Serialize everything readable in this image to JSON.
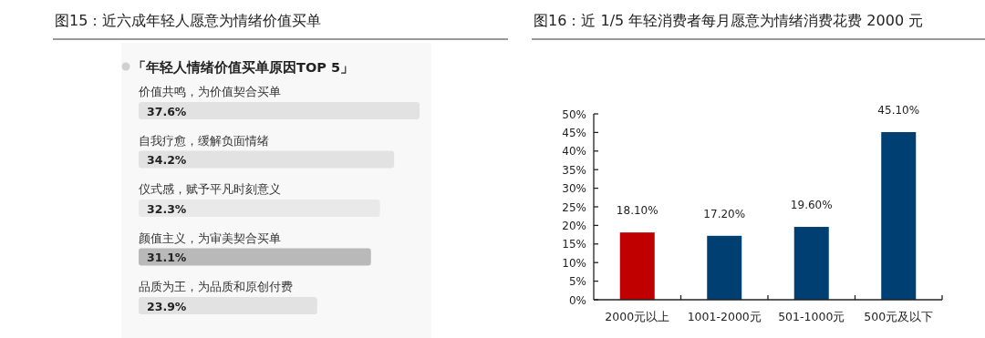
{
  "chart_data": [
    {
      "type": "bar",
      "orientation": "horizontal",
      "title": "图15：近六成年轻人愿意为情绪价值买单",
      "subtitle": "「年轻人情绪价值买单原因TOP 5」",
      "categories": [
        "价值共鸣，为价值契合买单",
        "自我疗愈，缓解负面情绪",
        "仪式感，赋予平凡时刻意义",
        "颜值主义，为审美契合买单",
        "品质为王，为品质和原创付费"
      ],
      "values": [
        37.6,
        34.2,
        32.3,
        31.1,
        23.9
      ],
      "colors": [
        "#e2e2e2",
        "#e2e2e2",
        "#e9e9e9",
        "#b9b9b9",
        "#e2e2e2"
      ],
      "value_labels": [
        "37.6%",
        "34.2%",
        "32.3%",
        "31.1%",
        "23.9%"
      ]
    },
    {
      "type": "bar",
      "title": "图16：近 1/5 年轻消费者每月愿意为情绪消费花费 2000 元",
      "categories": [
        "2000元以上",
        "1001-2000元",
        "501-1000元",
        "500元及以下"
      ],
      "values": [
        18.1,
        17.2,
        19.6,
        45.1
      ],
      "colors": [
        "#c00000",
        "#003f72",
        "#003f72",
        "#003f72"
      ],
      "value_labels": [
        "18.10%",
        "17.20%",
        "19.60%",
        "45.10%"
      ],
      "ylim": [
        0,
        50
      ],
      "yticks": [
        {
          "value": 0,
          "label": "0%"
        },
        {
          "value": 5,
          "label": "5%"
        },
        {
          "value": 10,
          "label": "10%"
        },
        {
          "value": 15,
          "label": "15%"
        },
        {
          "value": 20,
          "label": "20%"
        },
        {
          "value": 25,
          "label": "25%"
        },
        {
          "value": 30,
          "label": "30%"
        },
        {
          "value": 35,
          "label": "35%"
        },
        {
          "value": 40,
          "label": "40%"
        },
        {
          "value": 45,
          "label": "45%"
        },
        {
          "value": 50,
          "label": "50%"
        }
      ]
    }
  ]
}
